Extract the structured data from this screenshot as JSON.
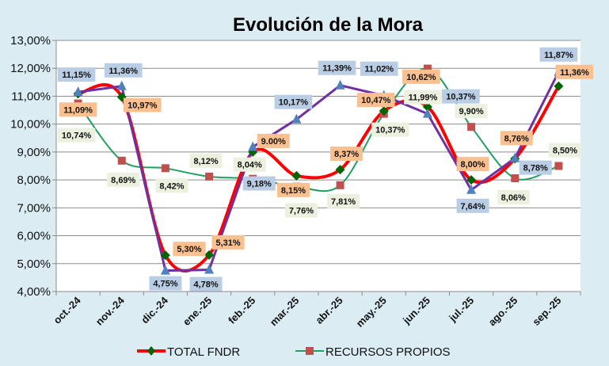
{
  "chart_data": {
    "type": "line",
    "title": "Evolución de la Mora",
    "xlabel": "",
    "ylabel": "",
    "ylim": [
      4,
      13
    ],
    "y_ticks": [
      "4,00%",
      "5,00%",
      "6,00%",
      "7,00%",
      "8,00%",
      "9,00%",
      "10,00%",
      "11,00%",
      "12,00%",
      "13,00%"
    ],
    "grid": true,
    "legend_position": "bottom",
    "categories": [
      "oct.-24",
      "nov.-24",
      "dic.-24",
      "ene.-25",
      "feb.-25",
      "mar.-25",
      "abr.-25",
      "may.-25",
      "jun.-25",
      "jul.-25",
      "ago.-25",
      "sep.-25"
    ],
    "series": [
      {
        "name": "TOTAL FNDR",
        "in_legend": true,
        "color": "#ff0000",
        "marker_color": "#006400",
        "marker": "diamond",
        "label_bg": "#fac090",
        "smooth": true,
        "values": [
          11.09,
          10.97,
          5.3,
          5.31,
          9.0,
          8.15,
          8.37,
          10.47,
          10.62,
          8.0,
          8.76,
          11.36
        ],
        "labels": [
          "11,09%",
          "10,97%",
          "5,30%",
          "5,31%",
          "9.00%",
          "8,15%",
          "8,37%",
          "10,47%",
          "10,62%",
          "8,00%",
          "8,76%",
          "11,36%"
        ]
      },
      {
        "name": "RECURSOS PROPIOS",
        "in_legend": true,
        "color": "#1fa060",
        "marker_color": "#c0504d",
        "marker": "square",
        "label_bg": "#ebf1de",
        "smooth": true,
        "values": [
          10.74,
          8.69,
          8.42,
          8.12,
          8.04,
          7.76,
          7.81,
          10.37,
          11.99,
          9.9,
          8.06,
          8.5
        ],
        "labels": [
          "10,74%",
          "8,69%",
          "8,42%",
          "8,12%",
          "8,04%",
          "7,76%",
          "7,81%",
          "10,37%",
          "11,99%",
          "9,90%",
          "8,06%",
          "8,50%"
        ]
      },
      {
        "name": "",
        "in_legend": false,
        "color": "#7030a0",
        "marker_color": "#4f81bd",
        "marker": "triangle",
        "label_bg": "#b9cde5",
        "smooth": false,
        "values": [
          11.15,
          11.36,
          4.75,
          4.78,
          9.18,
          10.17,
          11.39,
          11.02,
          10.37,
          7.64,
          8.78,
          11.87
        ],
        "labels": [
          "11,15%",
          "11,36%",
          "4,75%",
          "4,78%",
          "9,18%",
          "10,17%",
          "11,39%",
          "11,02%",
          "10,37%",
          "7,64%",
          "8,78%",
          "11,87%"
        ]
      }
    ]
  }
}
